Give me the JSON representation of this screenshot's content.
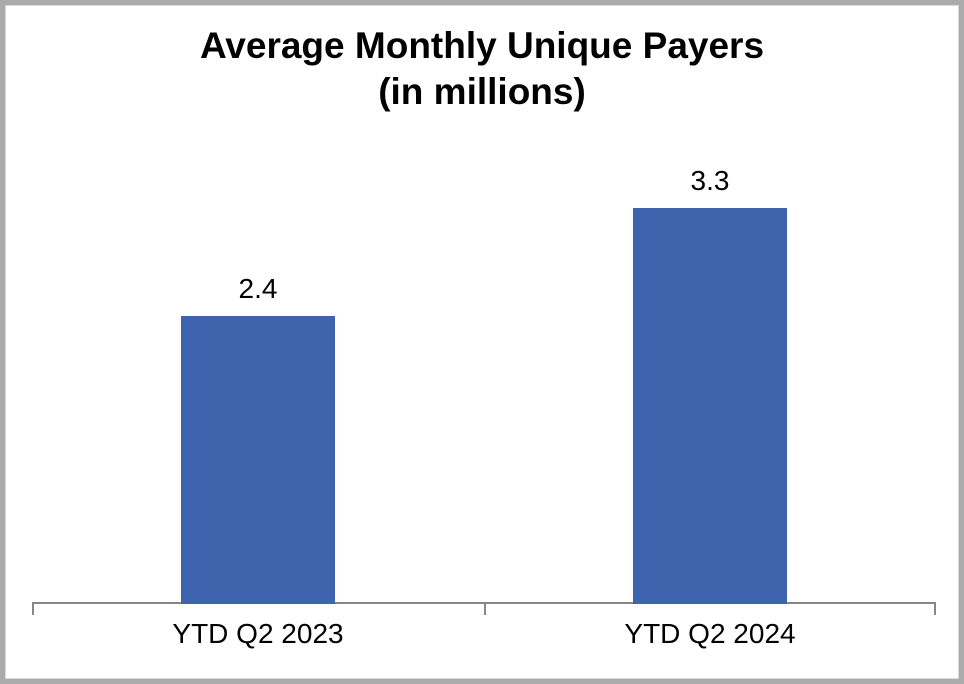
{
  "title": {
    "line1": "Average Monthly Unique Payers",
    "line2": "(in millions)"
  },
  "chart_data": {
    "type": "bar",
    "title": "Average Monthly Unique Payers (in millions)",
    "categories": [
      "YTD Q2 2023",
      "YTD Q2 2024"
    ],
    "values": [
      2.4,
      3.3
    ],
    "data_labels": [
      "2.4",
      "3.3"
    ],
    "series": [
      {
        "name": "Average Monthly Unique Payers",
        "values": [
          2.4,
          3.3
        ]
      }
    ],
    "xlabel": "",
    "ylabel": "",
    "ylim": [
      0,
      4
    ],
    "grid": false,
    "legend_position": "none",
    "bar_color": "#3d64ac",
    "axis_color": "#878787",
    "frame_border_color": "#ababab",
    "label_color": "#000000"
  }
}
